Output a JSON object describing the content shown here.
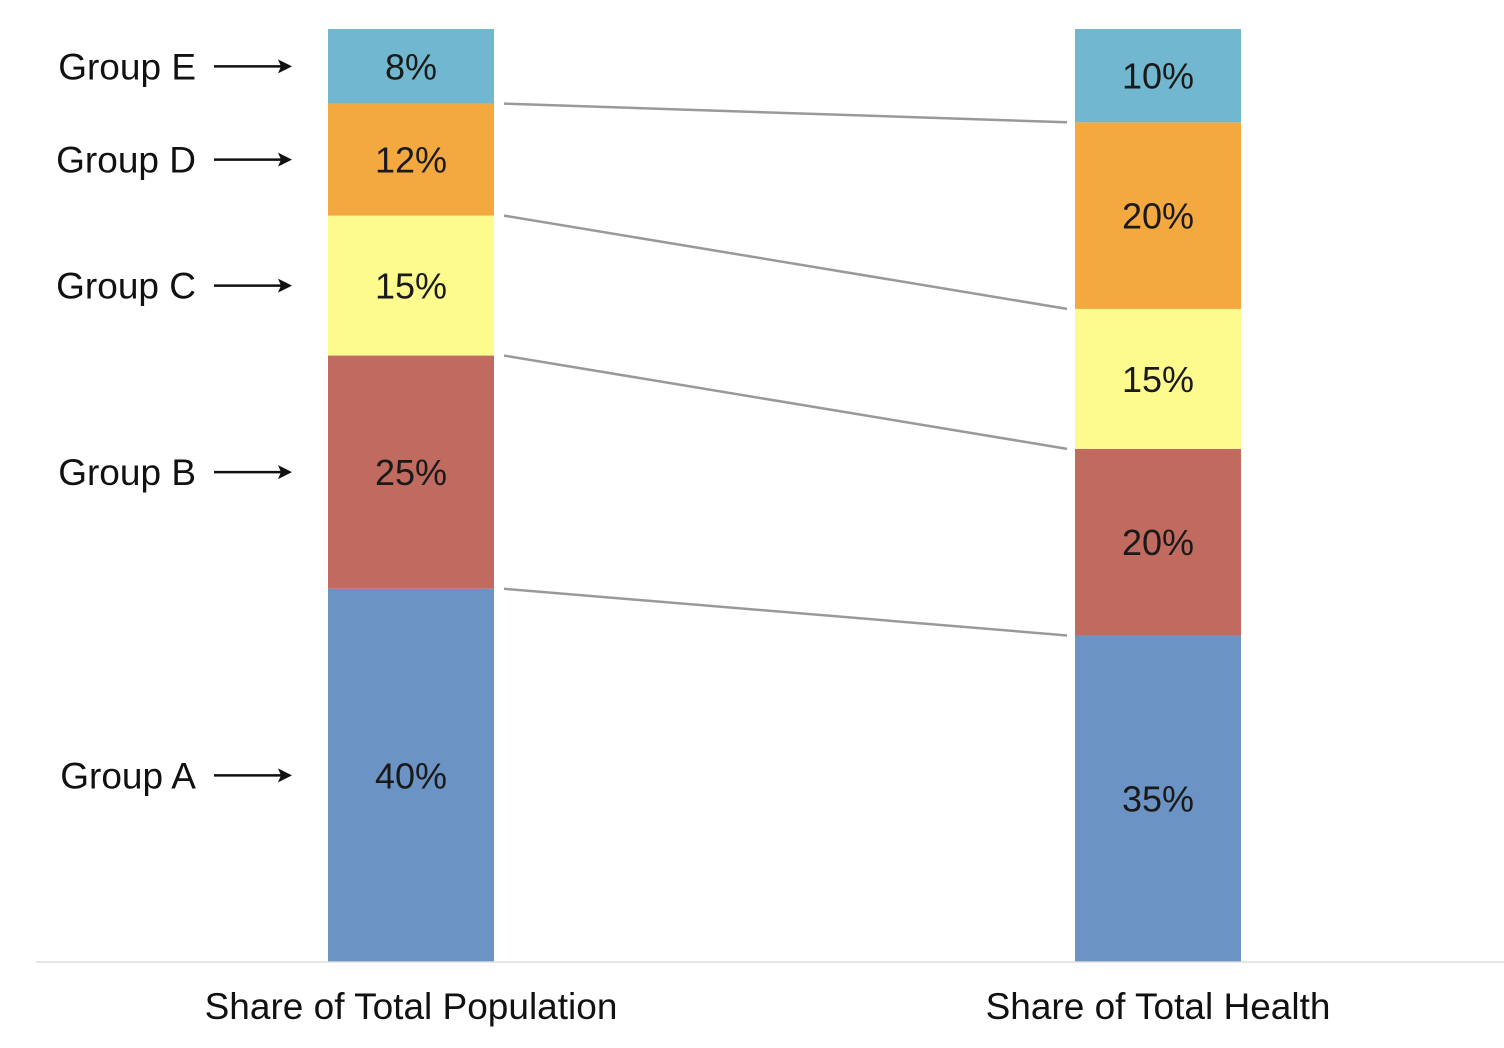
{
  "chart_data": {
    "type": "bar",
    "stacked": true,
    "categories": [
      "Share of Total Population",
      "Share of Total Health"
    ],
    "series": [
      {
        "name": "Group A",
        "values": [
          40,
          35
        ],
        "labels": [
          "40%",
          "35%"
        ],
        "color": "#6b93c4"
      },
      {
        "name": "Group B",
        "values": [
          25,
          20
        ],
        "labels": [
          "25%",
          "20%"
        ],
        "color": "#c06a60"
      },
      {
        "name": "Group C",
        "values": [
          15,
          15
        ],
        "labels": [
          "15%",
          "15%"
        ],
        "color": "#fefb8e"
      },
      {
        "name": "Group D",
        "values": [
          12,
          20
        ],
        "labels": [
          "12%",
          "20%"
        ],
        "color": "#f3a93f"
      },
      {
        "name": "Group E",
        "values": [
          8,
          10
        ],
        "labels": [
          "8%",
          "10%"
        ],
        "color": "#71b7cf"
      }
    ],
    "connector_color": "#999999",
    "ylim": [
      0,
      100
    ],
    "grid": false,
    "legend": "left-arrows"
  }
}
